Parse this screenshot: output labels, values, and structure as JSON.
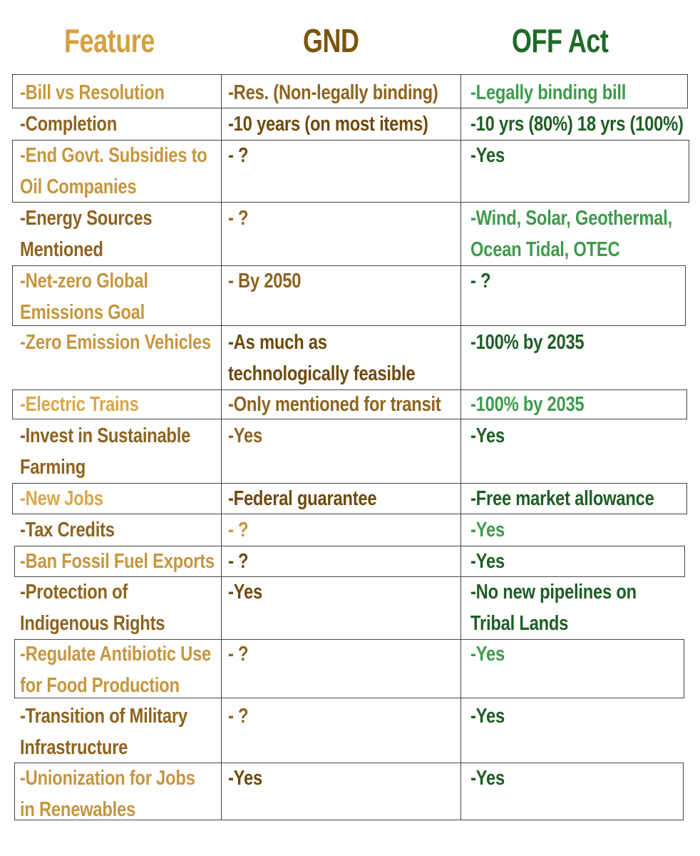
{
  "headers": {
    "feature": "Feature",
    "gnd": "GND",
    "off": "OFF Act"
  },
  "rows": [
    {
      "feature": [
        "-Bill vs Resolution"
      ],
      "gnd": [
        "-Res. (Non-legally binding)"
      ],
      "off": [
        "-Legally binding bill"
      ]
    },
    {
      "feature": [
        "-Completion"
      ],
      "gnd": [
        "-10 years (on most items)"
      ],
      "off": [
        "-10 yrs (80%) 18 yrs (100%)"
      ]
    },
    {
      "feature": [
        "-End Govt. Subsidies to",
        "Oil Companies"
      ],
      "gnd": [
        "- ?"
      ],
      "off": [
        "-Yes"
      ]
    },
    {
      "feature": [
        "-Energy Sources",
        "Mentioned"
      ],
      "gnd": [
        "- ?"
      ],
      "off": [
        "-Wind, Solar, Geothermal,",
        "Ocean Tidal, OTEC"
      ]
    },
    {
      "feature": [
        "-Net-zero Global",
        "Emissions Goal"
      ],
      "gnd": [
        "- By 2050"
      ],
      "off": [
        "- ?"
      ]
    },
    {
      "feature": [
        "-Zero Emission Vehicles"
      ],
      "gnd": [
        "-As much as",
        "technologically feasible"
      ],
      "off": [
        "-100% by 2035"
      ]
    },
    {
      "feature": [
        "-Electric Trains"
      ],
      "gnd": [
        "-Only mentioned for transit"
      ],
      "off": [
        "-100% by 2035"
      ]
    },
    {
      "feature": [
        "-Invest in Sustainable",
        "Farming"
      ],
      "gnd": [
        "-Yes"
      ],
      "off": [
        "-Yes"
      ]
    },
    {
      "feature": [
        "-New Jobs"
      ],
      "gnd": [
        "-Federal guarantee"
      ],
      "off": [
        "-Free market allowance"
      ]
    },
    {
      "feature": [
        "-Tax Credits"
      ],
      "gnd": [
        "- ?"
      ],
      "off": [
        "-Yes"
      ]
    },
    {
      "feature": [
        "-Ban Fossil Fuel Exports"
      ],
      "gnd": [
        "- ?"
      ],
      "off": [
        "-Yes"
      ]
    },
    {
      "feature": [
        "-Protection of",
        "Indigenous Rights"
      ],
      "gnd": [
        "-Yes"
      ],
      "off": [
        "-No new pipelines on",
        "Tribal Lands"
      ]
    },
    {
      "feature": [
        "-Regulate Antibiotic Use",
        "for Food Production"
      ],
      "gnd": [
        "- ?"
      ],
      "off": [
        "-Yes"
      ]
    },
    {
      "feature": [
        "-Transition of Military",
        "Infrastructure"
      ],
      "gnd": [
        "- ?"
      ],
      "off": [
        "-Yes"
      ]
    },
    {
      "feature": [
        "-Unionization for Jobs",
        "in Renewables"
      ],
      "gnd": [
        "-Yes"
      ],
      "off": [
        "-Yes"
      ]
    }
  ],
  "colors": {
    "feature": "#C6963F",
    "gnd": "#6E4A0C",
    "off": "#1E5E25"
  }
}
